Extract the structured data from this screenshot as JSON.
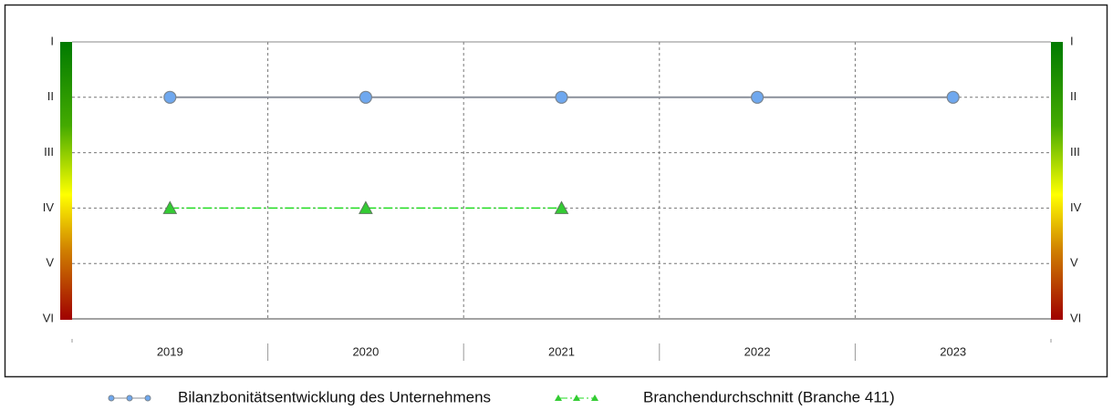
{
  "chart_data": {
    "type": "line",
    "categories": [
      "2019",
      "2020",
      "2021",
      "2022",
      "2023"
    ],
    "series": [
      {
        "name": "Bilanzbonitätsentwicklung des Unternehmens",
        "color": "#6fa8ef",
        "values": [
          2,
          2,
          2,
          2,
          2
        ]
      },
      {
        "name": "Branchendurchschnitt (Branche 411)",
        "color": "#33cc33",
        "values": [
          4,
          4,
          4,
          null,
          null
        ]
      }
    ],
    "ylim": [
      6,
      1
    ],
    "yticks": [
      {
        "value": 1,
        "label": "I"
      },
      {
        "value": 2,
        "label": "II"
      },
      {
        "value": 3,
        "label": "III"
      },
      {
        "value": 4,
        "label": "IV"
      },
      {
        "value": 5,
        "label": "V"
      },
      {
        "value": 6,
        "label": "VI"
      }
    ],
    "grid": true,
    "legend": "bottom"
  }
}
